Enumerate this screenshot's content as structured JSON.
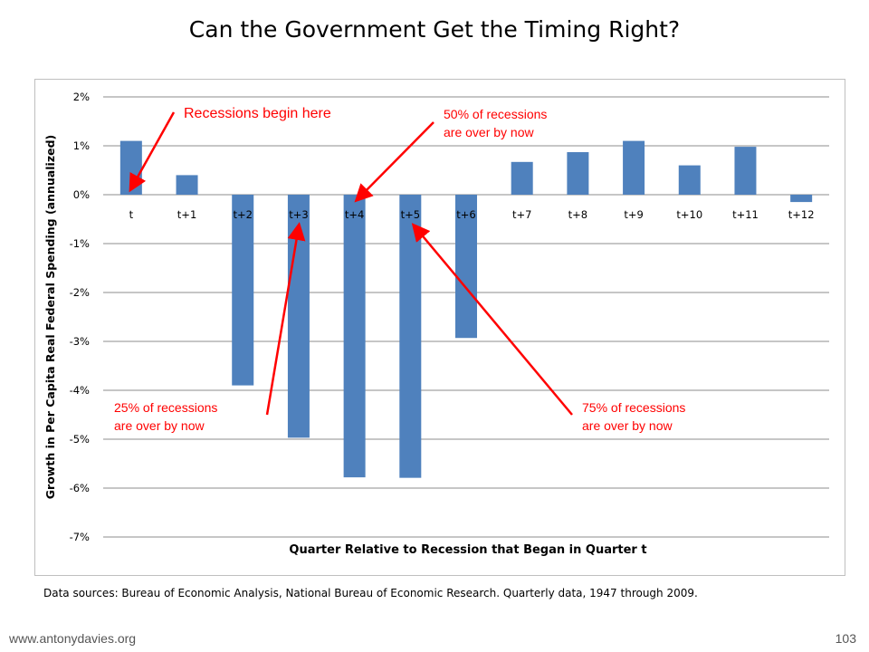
{
  "slide": {
    "title": "Can the Government Get the Timing Right?",
    "sources": "Data sources: Bureau of Economic Analysis, National Bureau of Economic Research. Quarterly data, 1947 through 2009.",
    "footer_url": "www.antonydavies.org",
    "page_number": "103"
  },
  "chart_data": {
    "type": "bar",
    "title": "",
    "xlabel": "Quarter Relative to Recession that Began in Quarter t",
    "ylabel": "Growth in Per Capita Real Federal Spending (annualized)",
    "ylim": [
      -7,
      2
    ],
    "yticks": [
      2,
      1,
      0,
      -1,
      -2,
      -3,
      -4,
      -5,
      -6,
      -7
    ],
    "ytick_labels": [
      "2%",
      "1%",
      "0%",
      "-1%",
      "-2%",
      "-3%",
      "-4%",
      "-5%",
      "-6%",
      "-7%"
    ],
    "grid": true,
    "bar_color": "#4f81bd",
    "categories": [
      "t",
      "t+1",
      "t+2",
      "t+3",
      "t+4",
      "t+5",
      "t+6",
      "t+7",
      "t+8",
      "t+9",
      "t+10",
      "t+11",
      "t+12"
    ],
    "values": [
      1.1,
      0.4,
      -3.9,
      -4.97,
      -5.78,
      -5.79,
      -2.93,
      0.67,
      0.87,
      1.1,
      0.6,
      0.98,
      -0.15
    ],
    "annotations": [
      {
        "lines": [
          "Recessions begin here"
        ],
        "points_to": "t",
        "color": "#ff0000"
      },
      {
        "lines": [
          "50% of recessions",
          "are over by now"
        ],
        "points_to": "t+4",
        "color": "#ff0000"
      },
      {
        "lines": [
          "25% of recessions",
          "are over by now"
        ],
        "points_to": "t+3",
        "color": "#ff0000"
      },
      {
        "lines": [
          "75% of recessions",
          "are over by now"
        ],
        "points_to": "t+5",
        "color": "#ff0000"
      }
    ]
  }
}
